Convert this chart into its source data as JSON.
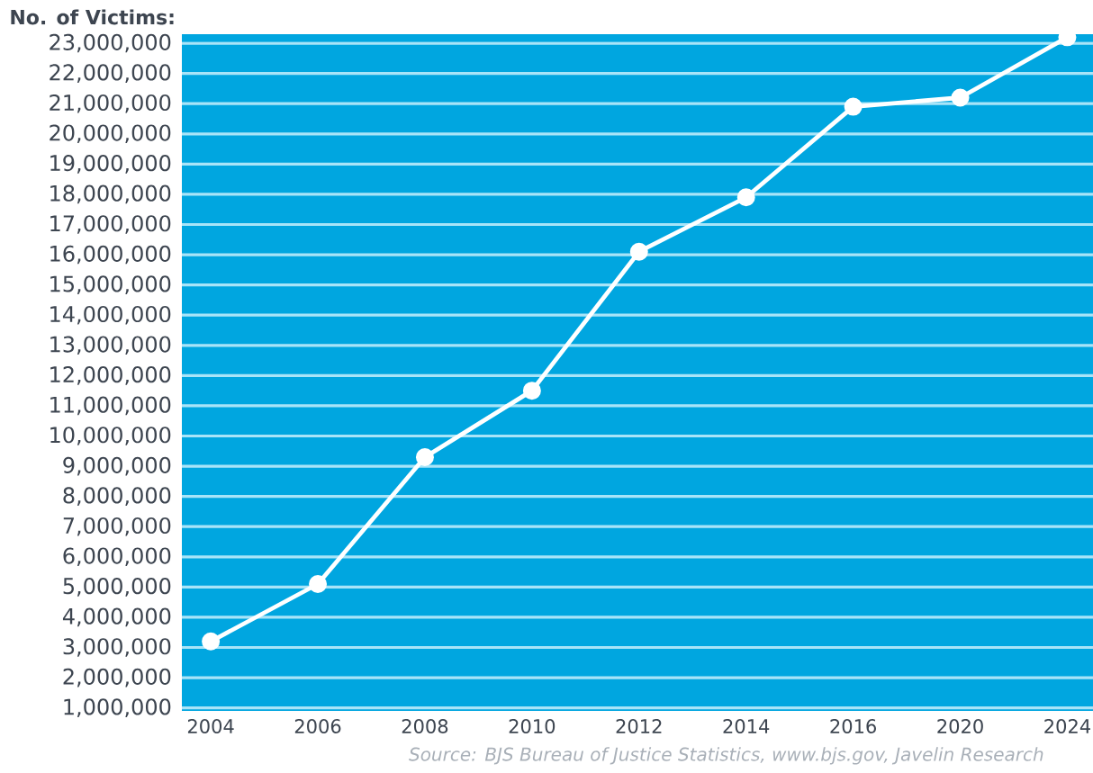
{
  "chart_data": {
    "type": "line",
    "ylabel": "No. of Victims:",
    "annotations": [
      "Source: BJS Bureau of Justice Statistics, www.bjs.gov, Javelin Research"
    ],
    "categories": [
      "2004",
      "2006",
      "2008",
      "2010",
      "2012",
      "2014",
      "2016",
      "2020",
      "2024"
    ],
    "series": [
      {
        "color": "#ffffff",
        "values": [
          3200000,
          5100000,
          9300000,
          11500000,
          16100000,
          17900000,
          20900000,
          21200000,
          23200000
        ]
      }
    ],
    "ylim": [
      900000,
      23300000
    ],
    "yticks": [
      {
        "value": 1000000,
        "label": "1,000,000"
      },
      {
        "value": 2000000,
        "label": "2,000,000"
      },
      {
        "value": 3000000,
        "label": "3,000,000"
      },
      {
        "value": 4000000,
        "label": "4,000,000"
      },
      {
        "value": 5000000,
        "label": "5,000,000"
      },
      {
        "value": 6000000,
        "label": "6,000,000"
      },
      {
        "value": 7000000,
        "label": "7,000,000"
      },
      {
        "value": 8000000,
        "label": "8,000,000"
      },
      {
        "value": 9000000,
        "label": "9,000,000"
      },
      {
        "value": 10000000,
        "label": "10,000,000"
      },
      {
        "value": 11000000,
        "label": "11,000,000"
      },
      {
        "value": 12000000,
        "label": "12,000,000"
      },
      {
        "value": 13000000,
        "label": "13,000,000"
      },
      {
        "value": 14000000,
        "label": "14,000,000"
      },
      {
        "value": 15000000,
        "label": "15,000,000"
      },
      {
        "value": 16000000,
        "label": "16,000,000"
      },
      {
        "value": 17000000,
        "label": "17,000,000"
      },
      {
        "value": 18000000,
        "label": "18,000,000"
      },
      {
        "value": 19000000,
        "label": "19,000,000"
      },
      {
        "value": 20000000,
        "label": "20,000,000"
      },
      {
        "value": 21000000,
        "label": "21,000,000"
      },
      {
        "value": 22000000,
        "label": "22,000,000"
      },
      {
        "value": 23000000,
        "label": "23,000,000"
      }
    ],
    "grid": "y",
    "marker": "circle",
    "line_style": "solid"
  }
}
